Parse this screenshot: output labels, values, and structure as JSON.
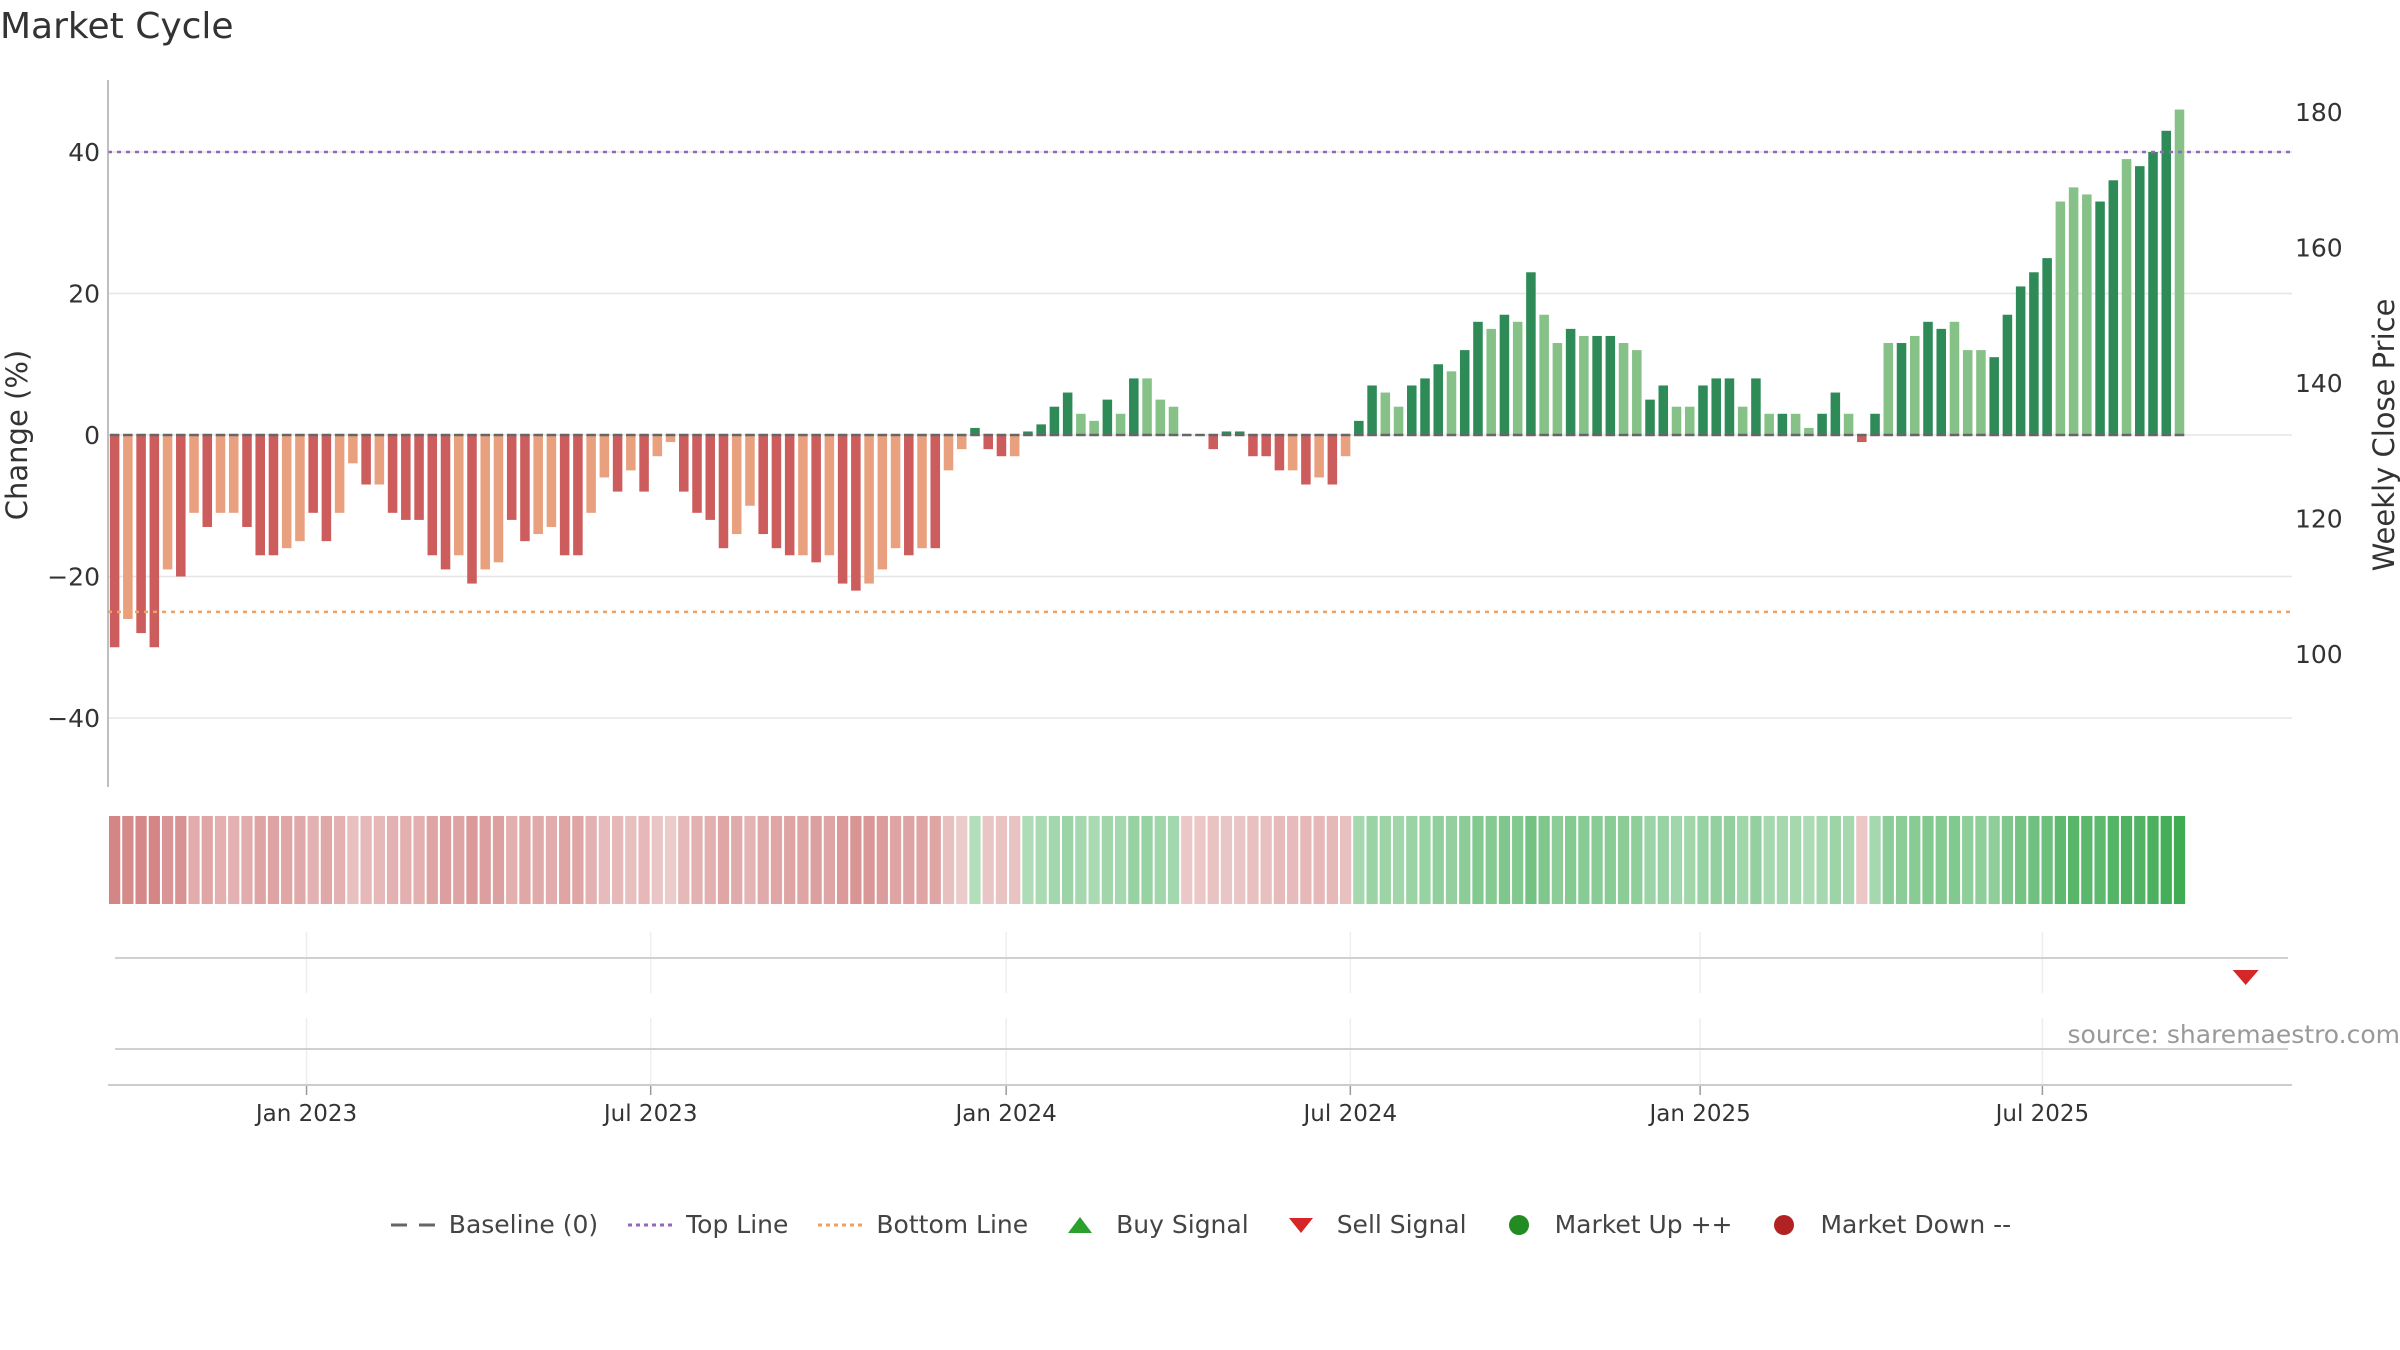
{
  "title": "Market Cycle",
  "source": "source: sharemaestro.com",
  "legend": [
    {
      "label": "Baseline (0)",
      "icon": "dash-gray-line"
    },
    {
      "label": "Top Line",
      "icon": "dotted-purple-line"
    },
    {
      "label": "Bottom Line",
      "icon": "dotted-orange-line"
    },
    {
      "label": "Buy Signal",
      "icon": "green-up-triangle"
    },
    {
      "label": "Sell Signal",
      "icon": "red-down-triangle"
    },
    {
      "label": "Market Up ++",
      "icon": "green-dot"
    },
    {
      "label": "Market Down --",
      "icon": "red-dot"
    }
  ],
  "colors": {
    "neg_dark": "#cd5c5c",
    "neg_light": "#e9a07f",
    "pos_dark": "#2e8b57",
    "pos_light": "#86c187",
    "top_line": "#9467bd",
    "bottom_line": "#f0a060",
    "sell_signal": "#d62728",
    "buy_signal": "#2ca02c",
    "market_up": "#228b22",
    "market_down": "#b22222"
  },
  "chart_data": {
    "type": "bar",
    "title": "Market Cycle",
    "ylabel": "Change (%)",
    "y2label": "Weekly Close Price",
    "ylim": [
      -50,
      50
    ],
    "yticks": [
      40,
      20,
      0,
      -20,
      -40
    ],
    "ytick_labels": [
      "40",
      "20",
      "0",
      "−20",
      "−40"
    ],
    "y2lim": [
      80,
      182
    ],
    "y2ticks": [
      180,
      160,
      140,
      120,
      100
    ],
    "y2tick_labels": [
      "180",
      "160",
      "140",
      "120",
      "100"
    ],
    "top_line": 40,
    "bottom_line": -25,
    "baseline": 0,
    "xlim": [
      "2022-09-12",
      "2025-11-10"
    ],
    "xticks": [
      "2022-12-26",
      "2023-06-26",
      "2023-12-31",
      "2024-06-30",
      "2025-01-01",
      "2025-07-01"
    ],
    "xtick_labels": [
      "Jan 2023",
      "Jul 2023",
      "Jan 2024",
      "Jul 2024",
      "Jan 2025",
      "Jul 2025"
    ],
    "start_date": "2022-09-12",
    "interval_days": 7,
    "values": [
      -30,
      -26,
      -28,
      -30,
      -19,
      -20,
      -11,
      -13,
      -11,
      -11,
      -13,
      -17,
      -17,
      -16,
      -15,
      -11,
      -15,
      -11,
      -4,
      -7,
      -7,
      -11,
      -12,
      -12,
      -17,
      -19,
      -17,
      -21,
      -19,
      -18,
      -12,
      -15,
      -14,
      -13,
      -17,
      -17,
      -11,
      -6,
      -8,
      -5,
      -8,
      -3,
      -1,
      -8,
      -11,
      -12,
      -16,
      -14,
      -10,
      -14,
      -16,
      -17,
      -17,
      -18,
      -17,
      -21,
      -22,
      -21,
      -19,
      -16,
      -17,
      -16,
      -16,
      -5,
      -2,
      1,
      -2,
      -3,
      -3,
      0.5,
      1.5,
      4,
      6,
      3,
      2,
      5,
      3,
      8,
      8,
      5,
      4,
      0,
      0,
      -2,
      0.5,
      0.5,
      -3,
      -3,
      -5,
      -5,
      -7,
      -6,
      -7,
      -3,
      2,
      7,
      6,
      4,
      7,
      8,
      10,
      9,
      12,
      16,
      15,
      17,
      16,
      23,
      17,
      13,
      15,
      14,
      14,
      14,
      13,
      12,
      5,
      7,
      4,
      4,
      7,
      8,
      8,
      4,
      8,
      3,
      3,
      3,
      1,
      3,
      6,
      3,
      -1,
      3,
      13,
      13,
      14,
      16,
      15,
      16,
      12,
      12,
      11,
      17,
      21,
      23,
      25,
      33,
      35,
      34,
      33,
      36,
      39,
      38,
      40,
      43,
      46
    ],
    "shade": [
      1,
      0,
      1,
      1,
      0,
      1,
      0,
      1,
      0,
      0,
      1,
      1,
      1,
      0,
      0,
      1,
      1,
      0,
      0,
      1,
      0,
      1,
      1,
      1,
      1,
      1,
      0,
      1,
      0,
      0,
      1,
      1,
      0,
      0,
      1,
      1,
      0,
      0,
      1,
      0,
      1,
      0,
      0,
      1,
      1,
      1,
      1,
      0,
      0,
      1,
      1,
      1,
      0,
      1,
      0,
      1,
      1,
      0,
      0,
      0,
      1,
      0,
      1,
      0,
      0,
      1,
      1,
      1,
      0,
      1,
      1,
      1,
      1,
      0,
      0,
      1,
      0,
      1,
      0,
      0,
      0,
      1,
      1,
      1,
      1,
      1,
      1,
      1,
      1,
      0,
      1,
      0,
      1,
      0,
      1,
      1,
      0,
      0,
      1,
      1,
      1,
      0,
      1,
      1,
      0,
      1,
      0,
      1,
      0,
      0,
      1,
      0,
      1,
      1,
      0,
      0,
      1,
      1,
      0,
      0,
      1,
      1,
      1,
      0,
      1,
      0,
      1,
      0,
      0,
      1,
      1,
      0,
      1,
      1,
      0,
      1,
      0,
      1,
      1,
      0,
      0,
      0,
      1,
      1,
      1,
      1,
      1,
      0,
      0,
      0,
      1,
      1,
      0,
      1,
      1,
      1
    ],
    "heat_strip": [
      -0.72,
      -0.68,
      -0.7,
      -0.72,
      -0.6,
      -0.62,
      -0.4,
      -0.45,
      -0.38,
      -0.36,
      -0.4,
      -0.48,
      -0.48,
      -0.45,
      -0.43,
      -0.36,
      -0.44,
      -0.36,
      -0.24,
      -0.3,
      -0.3,
      -0.36,
      -0.38,
      -0.38,
      -0.46,
      -0.52,
      -0.48,
      -0.56,
      -0.52,
      -0.5,
      -0.38,
      -0.44,
      -0.42,
      -0.4,
      -0.47,
      -0.47,
      -0.36,
      -0.28,
      -0.3,
      -0.25,
      -0.3,
      -0.2,
      -0.15,
      -0.3,
      -0.36,
      -0.38,
      -0.45,
      -0.42,
      -0.34,
      -0.42,
      -0.45,
      -0.47,
      -0.47,
      -0.5,
      -0.47,
      -0.56,
      -0.6,
      -0.58,
      -0.54,
      -0.46,
      -0.48,
      -0.46,
      -0.46,
      -0.24,
      -0.15,
      0.22,
      -0.2,
      -0.22,
      -0.22,
      0.25,
      0.28,
      0.32,
      0.36,
      0.3,
      0.28,
      0.34,
      0.3,
      0.4,
      0.4,
      0.34,
      0.32,
      -0.18,
      -0.18,
      -0.22,
      -0.2,
      -0.2,
      -0.24,
      -0.24,
      -0.28,
      -0.28,
      -0.3,
      -0.3,
      -0.3,
      -0.24,
      0.3,
      0.38,
      0.37,
      0.34,
      0.38,
      0.4,
      0.44,
      0.42,
      0.48,
      0.54,
      0.52,
      0.56,
      0.54,
      0.64,
      0.56,
      0.48,
      0.52,
      0.5,
      0.5,
      0.5,
      0.48,
      0.46,
      0.36,
      0.4,
      0.34,
      0.34,
      0.4,
      0.42,
      0.42,
      0.34,
      0.42,
      0.3,
      0.3,
      0.3,
      0.26,
      0.3,
      0.36,
      0.3,
      -0.18,
      0.3,
      0.48,
      0.48,
      0.5,
      0.54,
      0.52,
      0.54,
      0.46,
      0.46,
      0.45,
      0.56,
      0.62,
      0.66,
      0.68,
      0.78,
      0.82,
      0.8,
      0.78,
      0.84,
      0.88,
      0.86,
      0.9,
      0.94,
      0.98
    ],
    "signals": [
      {
        "type": "sell",
        "date": "2025-10-13",
        "row": 1
      }
    ],
    "grid": true,
    "legend_position": "bottom"
  }
}
